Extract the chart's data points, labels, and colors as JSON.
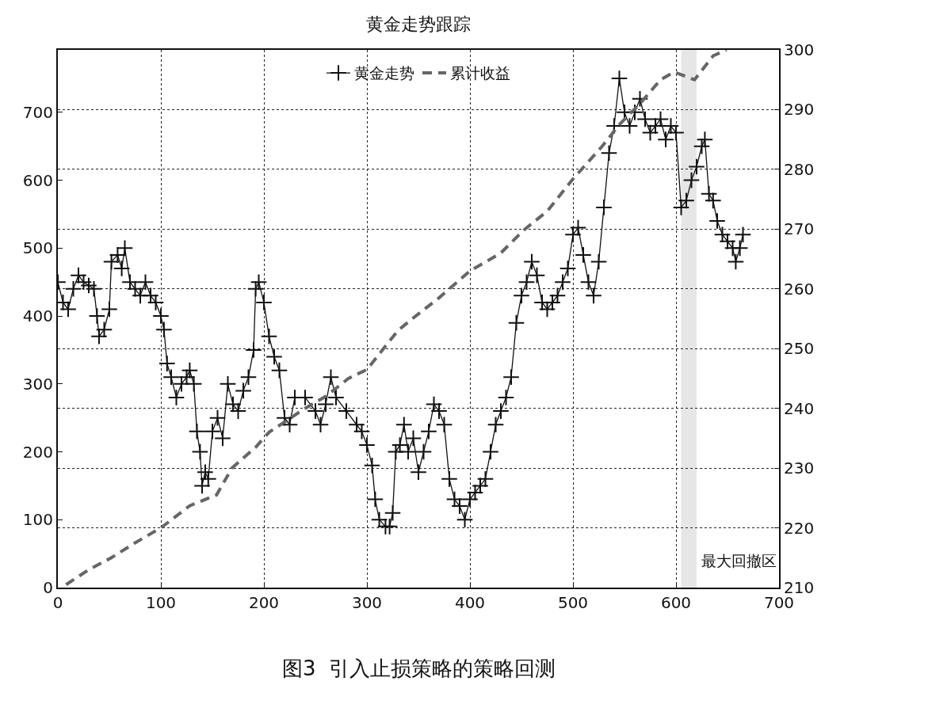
{
  "chart_data": {
    "type": "line",
    "title": "黄金走势跟踪",
    "xlim": [
      0,
      700
    ],
    "xticks": [
      0,
      100,
      200,
      300,
      400,
      500,
      600,
      700
    ],
    "ylim": [
      0,
      792
    ],
    "yticks": [
      0,
      100,
      200,
      300,
      400,
      500,
      600,
      700
    ],
    "y2lim": [
      210,
      300
    ],
    "y2ticks": [
      210,
      220,
      230,
      240,
      250,
      260,
      270,
      280,
      290,
      300
    ],
    "grid": true,
    "legend": "top",
    "series": [
      {
        "name": "黄金走势",
        "color": "#111111",
        "marker": "cross",
        "line_style": "solid",
        "x": [
          0,
          5,
          10,
          15,
          20,
          25,
          30,
          35,
          38,
          40,
          45,
          50,
          52,
          58,
          62,
          65,
          70,
          75,
          80,
          85,
          90,
          95,
          100,
          103,
          106,
          110,
          115,
          120,
          125,
          128,
          132,
          135,
          138,
          140,
          143,
          146,
          150,
          155,
          160,
          165,
          170,
          175,
          180,
          185,
          190,
          192,
          195,
          200,
          205,
          210,
          215,
          220,
          225,
          230,
          240,
          250,
          255,
          260,
          265,
          270,
          280,
          290,
          295,
          300,
          305,
          308,
          312,
          318,
          322,
          325,
          328,
          332,
          336,
          340,
          345,
          350,
          355,
          360,
          365,
          370,
          375,
          380,
          385,
          390,
          395,
          400,
          405,
          410,
          415,
          420,
          425,
          430,
          435,
          440,
          445,
          450,
          455,
          460,
          465,
          470,
          475,
          480,
          485,
          490,
          495,
          500,
          505,
          510,
          515,
          520,
          525,
          530,
          535,
          540,
          545,
          550,
          555,
          560,
          565,
          570,
          575,
          580,
          585,
          590,
          595,
          600,
          605,
          610,
          615,
          620,
          625,
          628,
          632,
          636,
          640,
          645,
          650,
          655,
          658,
          662,
          665
        ],
        "values": [
          450,
          420,
          410,
          440,
          460,
          450,
          445,
          440,
          400,
          370,
          380,
          410,
          480,
          490,
          470,
          500,
          450,
          440,
          430,
          450,
          430,
          420,
          400,
          380,
          330,
          310,
          280,
          300,
          310,
          320,
          300,
          230,
          200,
          150,
          170,
          160,
          230,
          250,
          220,
          300,
          270,
          260,
          290,
          310,
          350,
          440,
          450,
          420,
          370,
          340,
          320,
          250,
          240,
          280,
          280,
          260,
          240,
          270,
          310,
          280,
          260,
          240,
          230,
          210,
          180,
          130,
          100,
          90,
          90,
          110,
          200,
          210,
          240,
          200,
          220,
          170,
          200,
          230,
          270,
          260,
          240,
          160,
          130,
          120,
          100,
          130,
          140,
          150,
          160,
          200,
          240,
          260,
          280,
          310,
          390,
          430,
          450,
          480,
          460,
          420,
          410,
          420,
          430,
          450,
          470,
          520,
          530,
          490,
          450,
          430,
          480,
          560,
          640,
          680,
          750,
          700,
          680,
          700,
          720,
          690,
          670,
          680,
          690,
          660,
          680,
          670,
          560,
          570,
          600,
          620,
          650,
          660,
          580,
          570,
          540,
          520,
          510,
          500,
          480,
          500,
          520
        ]
      },
      {
        "name": "累计收益",
        "color": "#666666",
        "marker": "none",
        "line_style": "dashed",
        "axis": "y2",
        "x": [
          8,
          30,
          52,
          75,
          100,
          128,
          154,
          169,
          192,
          205,
          240,
          260,
          282,
          300,
          330,
          344,
          370,
          400,
          430,
          452,
          475,
          500,
          528,
          545,
          565,
          585,
          598,
          618,
          636,
          649
        ],
        "values": [
          210.5,
          213,
          215,
          217.5,
          220,
          223.7,
          225.5,
          230,
          233.5,
          236,
          240,
          242,
          245,
          246.5,
          253,
          255,
          258.5,
          263,
          266,
          269.8,
          273,
          278.4,
          283.8,
          287.5,
          291,
          295,
          296.3,
          295,
          299,
          300
        ]
      }
    ],
    "bands": [
      {
        "axis": "x",
        "from": 605,
        "to": 620,
        "label": "最大回撤区",
        "color": "#e6e6e6"
      }
    ],
    "annotations": [
      "图3  引入止损策略的策略回测"
    ]
  }
}
